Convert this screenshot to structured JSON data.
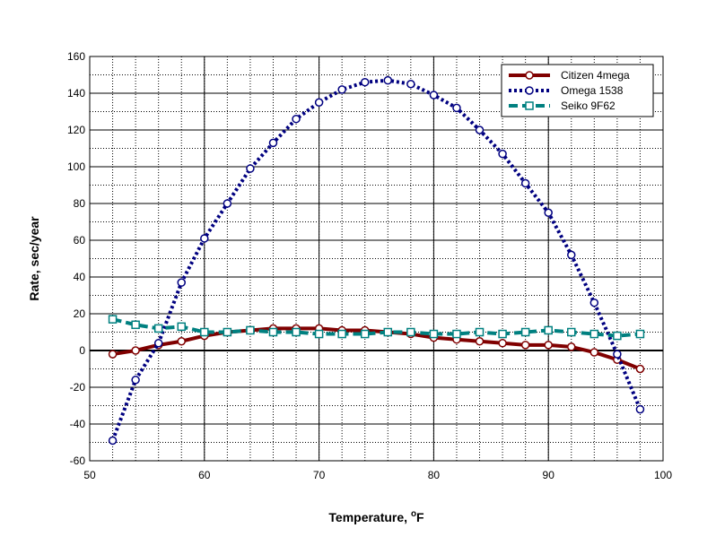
{
  "chart_data": {
    "type": "line",
    "title": "",
    "xlabel": "Temperature, ",
    "xlabel_sup": "o",
    "xlabel_unit": "F",
    "ylabel": "Rate, sec/year",
    "xlim": [
      50,
      100
    ],
    "ylim": [
      -60,
      160
    ],
    "x_major_ticks": [
      50,
      60,
      70,
      80,
      90,
      100
    ],
    "y_major_ticks": [
      -60,
      -40,
      -20,
      0,
      20,
      40,
      60,
      80,
      100,
      120,
      140,
      160
    ],
    "grid": true,
    "legend_position": "top-right",
    "x": [
      52,
      54,
      56,
      58,
      60,
      62,
      64,
      66,
      68,
      70,
      72,
      74,
      76,
      78,
      80,
      82,
      84,
      86,
      88,
      90,
      92,
      94,
      96,
      98
    ],
    "series": [
      {
        "name": "Citizen 4mega",
        "color": "#800000",
        "style": "solid",
        "marker": "circle",
        "values": [
          -2,
          0,
          3,
          5,
          8,
          10,
          11,
          12,
          12,
          12,
          11,
          11,
          10,
          9,
          7,
          6,
          5,
          4,
          3,
          3,
          2,
          -1,
          -5,
          -10
        ]
      },
      {
        "name": "Omega 1538",
        "color": "#000080",
        "style": "dotted",
        "marker": "circle",
        "values": [
          -49,
          -16,
          4,
          37,
          61,
          80,
          99,
          113,
          126,
          135,
          142,
          146,
          147,
          145,
          139,
          132,
          120,
          107,
          91,
          75,
          52,
          26,
          -2,
          -32
        ]
      },
      {
        "name": "Seiko 9F62",
        "color": "#008080",
        "style": "dashed",
        "marker": "square",
        "values": [
          17,
          14,
          12,
          13,
          10,
          10,
          11,
          10,
          10,
          9,
          9,
          9,
          10,
          10,
          9,
          9,
          10,
          9,
          10,
          11,
          10,
          9,
          8,
          9
        ]
      }
    ]
  }
}
